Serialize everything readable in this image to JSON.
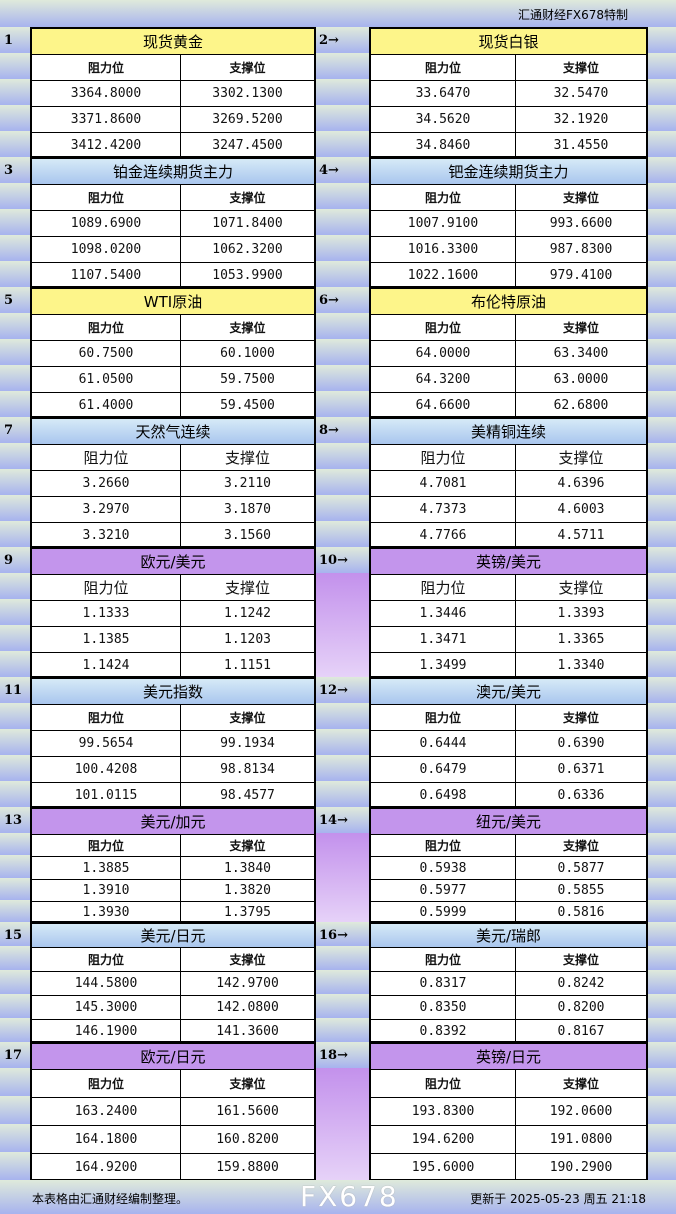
{
  "header": {
    "brand": "汇通财经FX678特制"
  },
  "blocks": [
    {
      "num": "1",
      "title": "现货黄金",
      "color": "yellow",
      "headers": [
        "阻力位",
        "支撑位"
      ],
      "rows": [
        [
          "3364.8000",
          "3302.1300"
        ],
        [
          "3371.8600",
          "3269.5200"
        ],
        [
          "3412.4200",
          "3247.4500"
        ]
      ]
    },
    {
      "num": "2→",
      "title": "现货白银",
      "color": "yellow",
      "headers": [
        "阻力位",
        "支撑位"
      ],
      "rows": [
        [
          "33.6470",
          "32.5470"
        ],
        [
          "34.5620",
          "32.1920"
        ],
        [
          "34.8460",
          "31.4550"
        ]
      ]
    },
    {
      "num": "3",
      "title": "铂金连续期货主力",
      "color": "blue",
      "headers": [
        "阻力位",
        "支撑位"
      ],
      "rows": [
        [
          "1089.6900",
          "1071.8400"
        ],
        [
          "1098.0200",
          "1062.3200"
        ],
        [
          "1107.5400",
          "1053.9900"
        ]
      ]
    },
    {
      "num": "4→",
      "title": "钯金连续期货主力",
      "color": "blue",
      "headers": [
        "阻力位",
        "支撑位"
      ],
      "rows": [
        [
          "1007.9100",
          "993.6600"
        ],
        [
          "1016.3300",
          "987.8300"
        ],
        [
          "1022.1600",
          "979.4100"
        ]
      ]
    },
    {
      "num": "5",
      "title": "WTI原油",
      "color": "yellow",
      "headers": [
        "阻力位",
        "支撑位"
      ],
      "rows": [
        [
          "60.7500",
          "60.1000"
        ],
        [
          "61.0500",
          "59.7500"
        ],
        [
          "61.4000",
          "59.4500"
        ]
      ]
    },
    {
      "num": "6→",
      "title": "布伦特原油",
      "color": "yellow",
      "headers": [
        "阻力位",
        "支撑位"
      ],
      "rows": [
        [
          "64.0000",
          "63.3400"
        ],
        [
          "64.3200",
          "63.0000"
        ],
        [
          "64.6600",
          "62.6800"
        ]
      ]
    },
    {
      "num": "7",
      "title": "天然气连续",
      "color": "blue",
      "headers": [
        "阻力位",
        "支撑位"
      ],
      "rows": [
        [
          "3.2660",
          "3.2110"
        ],
        [
          "3.2970",
          "3.1870"
        ],
        [
          "3.3210",
          "3.1560"
        ]
      ]
    },
    {
      "num": "8→",
      "title": "美精铜连续",
      "color": "blue",
      "headers": [
        "阻力位",
        "支撑位"
      ],
      "rows": [
        [
          "4.7081",
          "4.6396"
        ],
        [
          "4.7373",
          "4.6003"
        ],
        [
          "4.7766",
          "4.5711"
        ]
      ]
    },
    {
      "num": "9",
      "title": "欧元/美元",
      "color": "purple",
      "headers": [
        "阻力位",
        "支撑位"
      ],
      "rows": [
        [
          "1.1333",
          "1.1242"
        ],
        [
          "1.1385",
          "1.1203"
        ],
        [
          "1.1424",
          "1.1151"
        ]
      ]
    },
    {
      "num": "10→",
      "title": "英镑/美元",
      "color": "purple",
      "headers": [
        "阻力位",
        "支撑位"
      ],
      "rows": [
        [
          "1.3446",
          "1.3393"
        ],
        [
          "1.3471",
          "1.3365"
        ],
        [
          "1.3499",
          "1.3340"
        ]
      ]
    },
    {
      "num": "11",
      "title": "美元指数",
      "color": "blue",
      "headers": [
        "阻力位",
        "支撑位"
      ],
      "rows": [
        [
          "99.5654",
          "99.1934"
        ],
        [
          "100.4208",
          "98.8134"
        ],
        [
          "101.0115",
          "98.4577"
        ]
      ]
    },
    {
      "num": "12→",
      "title": "澳元/美元",
      "color": "blue",
      "headers": [
        "阻力位",
        "支撑位"
      ],
      "rows": [
        [
          "0.6444",
          "0.6390"
        ],
        [
          "0.6479",
          "0.6371"
        ],
        [
          "0.6498",
          "0.6336"
        ]
      ]
    },
    {
      "num": "13",
      "title": "美元/加元",
      "color": "purple",
      "headers": [
        "阻力位",
        "支撑位"
      ],
      "rows": [
        [
          "1.3885",
          "1.3840"
        ],
        [
          "1.3910",
          "1.3820"
        ],
        [
          "1.3930",
          "1.3795"
        ]
      ]
    },
    {
      "num": "14→",
      "title": "纽元/美元",
      "color": "purple",
      "headers": [
        "阻力位",
        "支撑位"
      ],
      "rows": [
        [
          "0.5938",
          "0.5877"
        ],
        [
          "0.5977",
          "0.5855"
        ],
        [
          "0.5999",
          "0.5816"
        ]
      ]
    },
    {
      "num": "15",
      "title": "美元/日元",
      "color": "blue",
      "headers": [
        "阻力位",
        "支撑位"
      ],
      "rows": [
        [
          "144.5800",
          "142.9700"
        ],
        [
          "145.3000",
          "142.0800"
        ],
        [
          "146.1900",
          "141.3600"
        ]
      ]
    },
    {
      "num": "16→",
      "title": "美元/瑞郎",
      "color": "blue",
      "headers": [
        "阻力位",
        "支撑位"
      ],
      "rows": [
        [
          "0.8317",
          "0.8242"
        ],
        [
          "0.8350",
          "0.8200"
        ],
        [
          "0.8392",
          "0.8167"
        ]
      ]
    },
    {
      "num": "17",
      "title": "欧元/日元",
      "color": "purple",
      "headers": [
        "阻力位",
        "支撑位"
      ],
      "rows": [
        [
          "163.2400",
          "161.5600"
        ],
        [
          "164.1800",
          "160.8200"
        ],
        [
          "164.9200",
          "159.8800"
        ]
      ]
    },
    {
      "num": "18→",
      "title": "英镑/日元",
      "color": "purple",
      "headers": [
        "阻力位",
        "支撑位"
      ],
      "rows": [
        [
          "193.8300",
          "192.0600"
        ],
        [
          "194.6200",
          "191.0800"
        ],
        [
          "195.6000",
          "190.2900"
        ]
      ]
    }
  ],
  "footer": {
    "note": "本表格由汇通财经编制整理。",
    "updated": "更新于 2025-05-23 周五 21:18",
    "watermark": "FX678"
  }
}
